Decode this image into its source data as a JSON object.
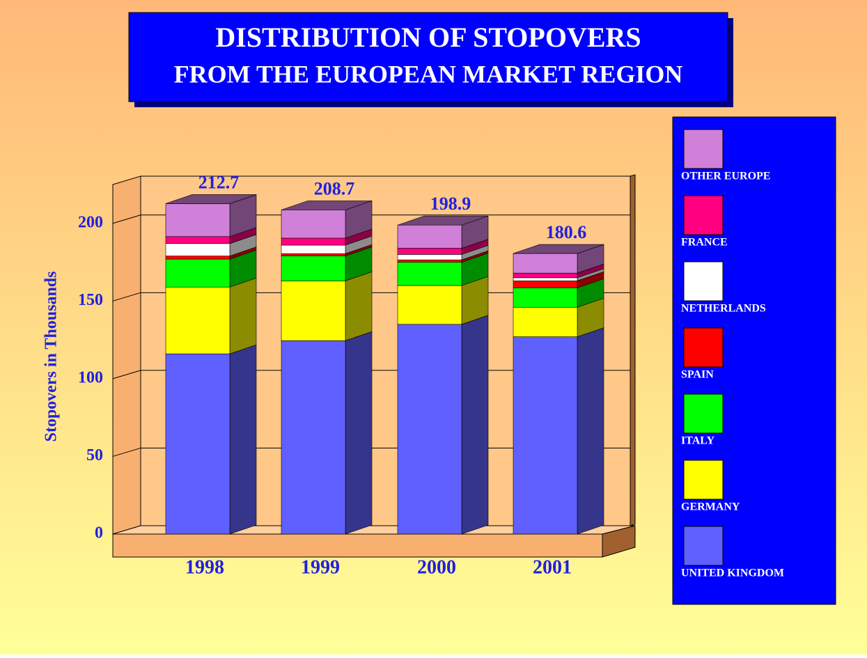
{
  "chart_data": {
    "type": "bar3d_stacked",
    "title": "DISTRIBUTION OF STOPOVERS",
    "subtitle": "FROM THE EUROPEAN MARKET REGION",
    "y_label": "Stopovers in Thousands",
    "categories": [
      "1998",
      "1999",
      "2000",
      "2001"
    ],
    "series": [
      {
        "name": "UNITED KINGDOM",
        "color": "#6060ff",
        "values": [
          116,
          124.5,
          135,
          127
        ]
      },
      {
        "name": "GERMANY",
        "color": "#ffff00",
        "values": [
          43,
          38.5,
          25,
          19
        ]
      },
      {
        "name": "ITALY",
        "color": "#00ff00",
        "values": [
          18,
          16,
          15,
          12.5
        ]
      },
      {
        "name": "SPAIN",
        "color": "#ff0000",
        "values": [
          2,
          1.5,
          1.5,
          4.5
        ]
      },
      {
        "name": "NETHERLANDS",
        "color": "#ffffff",
        "values": [
          8,
          5.5,
          3.5,
          2
        ]
      },
      {
        "name": "FRANCE",
        "color": "#ff0080",
        "values": [
          4.5,
          4.5,
          4,
          3
        ]
      },
      {
        "name": "OTHER EUROPE",
        "color": "#d080d8",
        "values": [
          21.2,
          18.2,
          14.9,
          12.6
        ]
      }
    ],
    "totals": [
      212.7,
      208.7,
      198.9,
      180.6
    ],
    "ylim": [
      0,
      225
    ],
    "yticks": [
      0,
      50,
      100,
      150,
      200
    ],
    "grid": true
  }
}
